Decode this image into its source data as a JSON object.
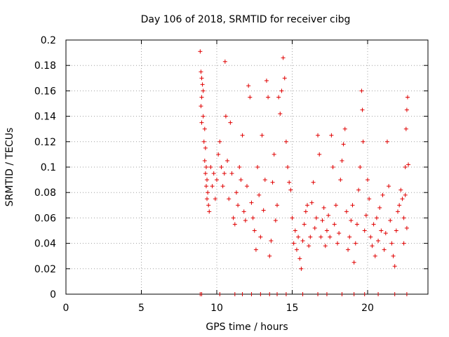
{
  "chart_data": {
    "type": "scatter",
    "title": "Day 106 of 2018, SRMTID for receiver cibg",
    "xlabel": "GPS time / hours",
    "ylabel": "SRMTID / TECUs",
    "xlim": [
      0,
      24
    ],
    "ylim": [
      0,
      0.2
    ],
    "x_ticks": [
      0,
      5,
      10,
      15,
      20
    ],
    "x_tick_labels": [
      "0",
      "5",
      "10",
      "15",
      "20"
    ],
    "y_ticks": [
      0,
      0.02,
      0.04,
      0.06,
      0.08,
      0.1,
      0.12,
      0.14,
      0.16,
      0.18,
      0.2
    ],
    "y_tick_labels": [
      "0",
      "0.02",
      "0.04",
      "0.06",
      "0.08",
      "0.1",
      "0.12",
      "0.14",
      "0.16",
      "0.18",
      "0.2"
    ],
    "grid": true,
    "marker": "+",
    "color": "#e00000",
    "series": [
      {
        "name": "SRMTID",
        "points": [
          [
            8.9,
            0.191
          ],
          [
            8.95,
            0.175
          ],
          [
            9.0,
            0.17
          ],
          [
            9.05,
            0.165
          ],
          [
            9.1,
            0.16
          ],
          [
            9.0,
            0.155
          ],
          [
            8.95,
            0.148
          ],
          [
            9.1,
            0.14
          ],
          [
            9.0,
            0.135
          ],
          [
            9.2,
            0.13
          ],
          [
            9.15,
            0.12
          ],
          [
            9.25,
            0.115
          ],
          [
            9.2,
            0.105
          ],
          [
            9.3,
            0.1
          ],
          [
            9.25,
            0.095
          ],
          [
            9.35,
            0.09
          ],
          [
            9.3,
            0.085
          ],
          [
            9.4,
            0.08
          ],
          [
            9.35,
            0.075
          ],
          [
            9.45,
            0.07
          ],
          [
            9.5,
            0.065
          ],
          [
            9.6,
            0.1
          ],
          [
            9.7,
            0.085
          ],
          [
            9.8,
            0.095
          ],
          [
            9.9,
            0.075
          ],
          [
            10.0,
            0.09
          ],
          [
            10.1,
            0.11
          ],
          [
            10.2,
            0.12
          ],
          [
            10.3,
            0.1
          ],
          [
            10.4,
            0.085
          ],
          [
            10.5,
            0.095
          ],
          [
            10.55,
            0.183
          ],
          [
            10.6,
            0.14
          ],
          [
            10.7,
            0.105
          ],
          [
            10.8,
            0.075
          ],
          [
            10.9,
            0.135
          ],
          [
            11.0,
            0.095
          ],
          [
            11.1,
            0.06
          ],
          [
            11.2,
            0.055
          ],
          [
            11.3,
            0.08
          ],
          [
            11.4,
            0.07
          ],
          [
            11.5,
            0.1
          ],
          [
            11.6,
            0.09
          ],
          [
            11.7,
            0.125
          ],
          [
            11.8,
            0.065
          ],
          [
            11.9,
            0.058
          ],
          [
            12.0,
            0.085
          ],
          [
            12.1,
            0.164
          ],
          [
            12.2,
            0.155
          ],
          [
            12.3,
            0.072
          ],
          [
            12.4,
            0.06
          ],
          [
            12.5,
            0.05
          ],
          [
            12.6,
            0.035
          ],
          [
            12.7,
            0.1
          ],
          [
            12.8,
            0.078
          ],
          [
            12.9,
            0.045
          ],
          [
            13.0,
            0.125
          ],
          [
            13.1,
            0.066
          ],
          [
            13.2,
            0.09
          ],
          [
            13.3,
            0.168
          ],
          [
            13.4,
            0.155
          ],
          [
            13.5,
            0.03
          ],
          [
            13.6,
            0.042
          ],
          [
            13.7,
            0.088
          ],
          [
            13.8,
            0.11
          ],
          [
            13.9,
            0.058
          ],
          [
            14.0,
            0.07
          ],
          [
            14.1,
            0.155
          ],
          [
            14.2,
            0.142
          ],
          [
            14.3,
            0.16
          ],
          [
            14.4,
            0.186
          ],
          [
            14.5,
            0.17
          ],
          [
            14.6,
            0.12
          ],
          [
            14.7,
            0.1
          ],
          [
            14.8,
            0.088
          ],
          [
            14.9,
            0.082
          ],
          [
            15.0,
            0.06
          ],
          [
            15.1,
            0.04
          ],
          [
            15.2,
            0.05
          ],
          [
            15.3,
            0.035
          ],
          [
            15.4,
            0.045
          ],
          [
            15.5,
            0.028
          ],
          [
            15.6,
            0.02
          ],
          [
            15.7,
            0.042
          ],
          [
            15.8,
            0.055
          ],
          [
            15.9,
            0.065
          ],
          [
            16.0,
            0.07
          ],
          [
            16.1,
            0.038
          ],
          [
            16.2,
            0.045
          ],
          [
            16.3,
            0.072
          ],
          [
            16.4,
            0.088
          ],
          [
            16.5,
            0.052
          ],
          [
            16.6,
            0.06
          ],
          [
            16.7,
            0.125
          ],
          [
            16.8,
            0.11
          ],
          [
            16.9,
            0.045
          ],
          [
            17.0,
            0.058
          ],
          [
            17.1,
            0.068
          ],
          [
            17.2,
            0.038
          ],
          [
            17.3,
            0.05
          ],
          [
            17.4,
            0.062
          ],
          [
            17.5,
            0.045
          ],
          [
            17.6,
            0.125
          ],
          [
            17.7,
            0.1
          ],
          [
            17.8,
            0.055
          ],
          [
            17.9,
            0.07
          ],
          [
            18.0,
            0.04
          ],
          [
            18.1,
            0.048
          ],
          [
            18.2,
            0.09
          ],
          [
            18.3,
            0.105
          ],
          [
            18.4,
            0.118
          ],
          [
            18.5,
            0.13
          ],
          [
            18.6,
            0.065
          ],
          [
            18.7,
            0.035
          ],
          [
            18.8,
            0.045
          ],
          [
            18.9,
            0.058
          ],
          [
            19.0,
            0.07
          ],
          [
            19.1,
            0.025
          ],
          [
            19.2,
            0.04
          ],
          [
            19.3,
            0.055
          ],
          [
            19.4,
            0.082
          ],
          [
            19.5,
            0.1
          ],
          [
            19.6,
            0.16
          ],
          [
            19.65,
            0.145
          ],
          [
            19.7,
            0.12
          ],
          [
            19.8,
            0.05
          ],
          [
            19.9,
            0.062
          ],
          [
            20.0,
            0.09
          ],
          [
            20.1,
            0.075
          ],
          [
            20.2,
            0.045
          ],
          [
            20.3,
            0.038
          ],
          [
            20.4,
            0.055
          ],
          [
            20.5,
            0.03
          ],
          [
            20.6,
            0.06
          ],
          [
            20.7,
            0.042
          ],
          [
            20.8,
            0.068
          ],
          [
            20.9,
            0.05
          ],
          [
            21.0,
            0.078
          ],
          [
            21.1,
            0.035
          ],
          [
            21.2,
            0.048
          ],
          [
            21.3,
            0.12
          ],
          [
            21.4,
            0.085
          ],
          [
            21.5,
            0.058
          ],
          [
            21.6,
            0.04
          ],
          [
            21.7,
            0.03
          ],
          [
            21.8,
            0.022
          ],
          [
            21.9,
            0.05
          ],
          [
            22.0,
            0.065
          ],
          [
            22.1,
            0.07
          ],
          [
            22.2,
            0.082
          ],
          [
            22.3,
            0.075
          ],
          [
            22.4,
            0.06
          ],
          [
            22.5,
            0.1
          ],
          [
            22.55,
            0.13
          ],
          [
            22.6,
            0.145
          ],
          [
            22.65,
            0.155
          ],
          [
            22.7,
            0.102
          ],
          [
            22.5,
            0.078
          ],
          [
            22.6,
            0.052
          ],
          [
            22.4,
            0.04
          ]
        ]
      }
    ],
    "bottom_markers_x": [
      8.9,
      9.0,
      10.2,
      11.2,
      11.7,
      12.3,
      12.9,
      13.5,
      14.0,
      14.6,
      15.7,
      16.7,
      17.3,
      18.3,
      19.1,
      19.8,
      20.7,
      21.8,
      22.6
    ]
  }
}
